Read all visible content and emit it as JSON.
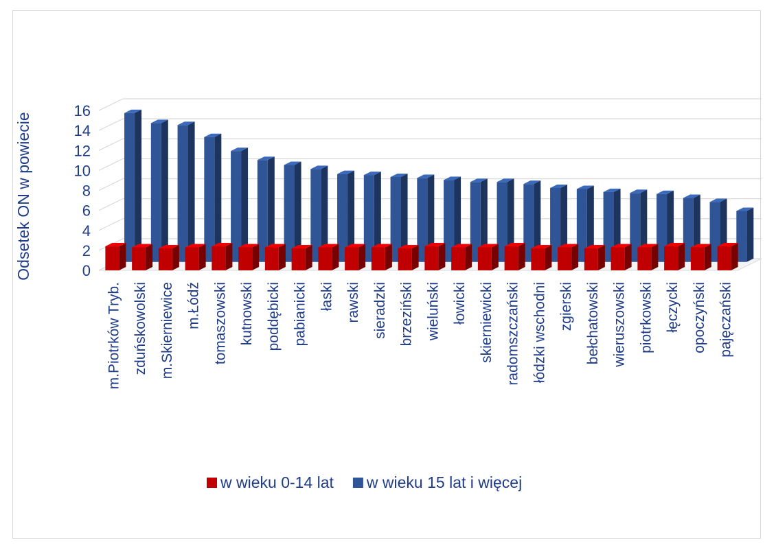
{
  "chart_data": {
    "type": "bar",
    "style": "3d-clustered-column",
    "ylabel": "Odsetek ON w powiecie",
    "xlabel": "",
    "title": "",
    "ylim": [
      0,
      16
    ],
    "yticks": [
      0,
      2,
      4,
      6,
      8,
      10,
      12,
      14,
      16
    ],
    "grid": true,
    "legend_position": "bottom",
    "categories": [
      "m.Piotrków Tryb.",
      "zduńskowolski",
      "m.Skierniewice",
      "m.Łódź",
      "tomaszowski",
      "kutnowski",
      "poddębicki",
      "pabianicki",
      "łaski",
      "rawski",
      "sieradzki",
      "brzeziński",
      "wieluński",
      "łowicki",
      "skierniewicki",
      "radomszczański",
      "łódzki wschodni",
      "zgierski",
      "bełchatowski",
      "wieruszowski",
      "piotrkowski",
      "łęczycki",
      "opoczyński",
      "pajęczański"
    ],
    "series": [
      {
        "name": "w wieku 0-14 lat",
        "color": "#c00000",
        "values": [
          2.4,
          2.3,
          2.2,
          2.3,
          2.4,
          2.3,
          2.3,
          2.2,
          2.3,
          2.3,
          2.3,
          2.2,
          2.4,
          2.3,
          2.3,
          2.4,
          2.2,
          2.3,
          2.2,
          2.3,
          2.3,
          2.4,
          2.3,
          2.4
        ]
      },
      {
        "name": "w wieku 15 lat i więcej",
        "color": "#2f5597",
        "values": [
          14.9,
          13.9,
          13.7,
          12.5,
          11.1,
          10.2,
          9.7,
          9.3,
          8.8,
          8.7,
          8.5,
          8.4,
          8.2,
          8.0,
          8.0,
          7.8,
          7.4,
          7.3,
          7.0,
          6.9,
          6.8,
          6.4,
          6.0,
          5.1
        ]
      }
    ]
  }
}
